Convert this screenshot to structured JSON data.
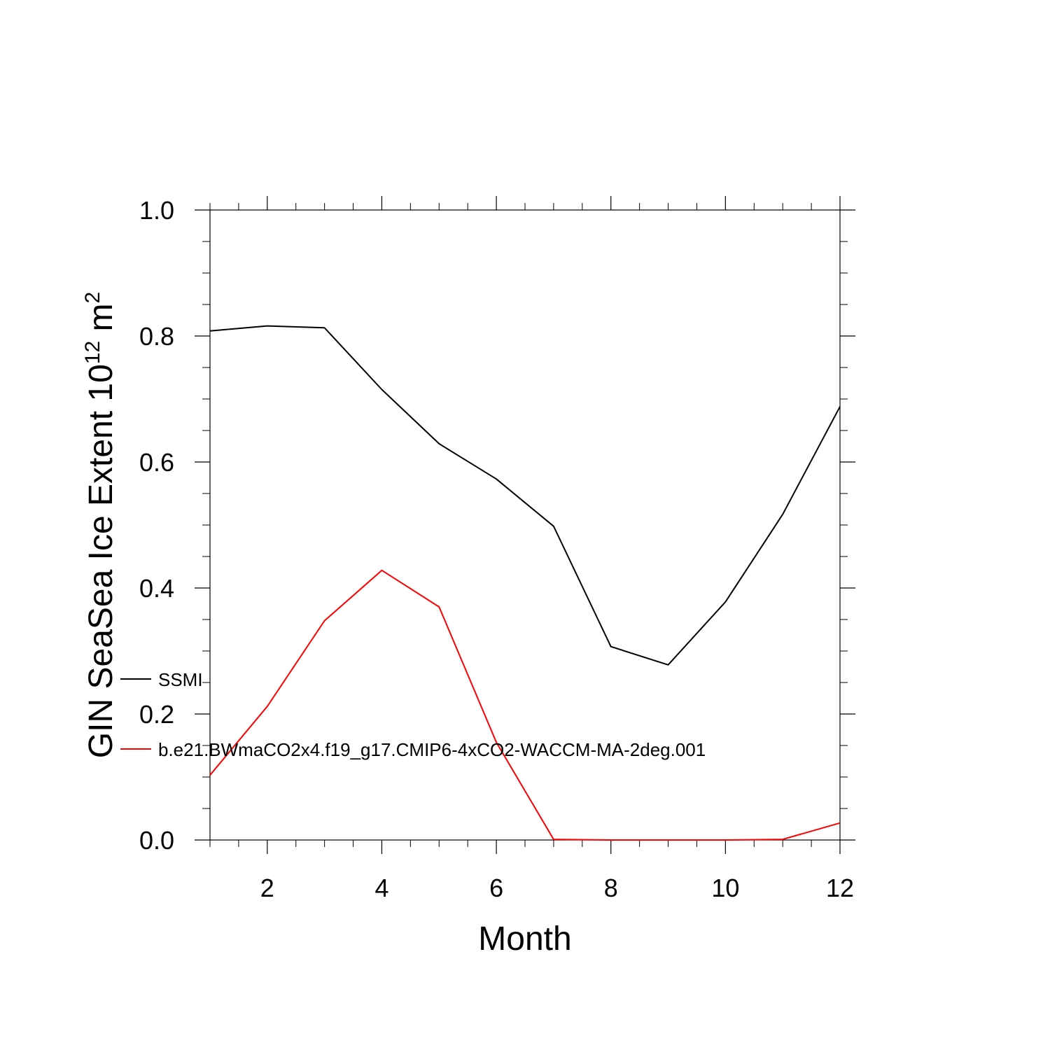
{
  "chart_data": {
    "type": "line",
    "title": "",
    "xlabel": "Month",
    "ylabel": "GIN SeaSea Ice Extent 10",
    "ylabel_superscript": "12",
    "ylabel_unit": " m",
    "ylabel_unit_superscript": "2",
    "xlim": [
      1,
      12
    ],
    "ylim": [
      0,
      1.0
    ],
    "x_ticks": [
      2,
      4,
      6,
      8,
      10,
      12
    ],
    "x_tick_labels": [
      "2",
      "4",
      "6",
      "8",
      "10",
      "12"
    ],
    "y_ticks": [
      0,
      0.2,
      0.4,
      0.6,
      0.8,
      1.0
    ],
    "y_tick_labels": [
      "0.0",
      "0.2",
      "0.4",
      "0.6",
      "0.8",
      "1.0"
    ],
    "grid": false,
    "legend_placement": "left-center",
    "x": [
      1,
      2,
      3,
      4,
      5,
      6,
      7,
      8,
      9,
      10,
      11,
      12
    ],
    "series": [
      {
        "name": "SSMI",
        "color": "#000000",
        "values": [
          0.808,
          0.816,
          0.813,
          0.715,
          0.629,
          0.573,
          0.498,
          0.307,
          0.278,
          0.378,
          0.517,
          0.688
        ]
      },
      {
        "name": "b.e21.BWmaCO2x4.f19_g17.CMIP6-4xCO2-WACCM-MA-2deg.001",
        "color": "#ff0000",
        "values": [
          0.103,
          0.212,
          0.348,
          0.428,
          0.37,
          0.155,
          0.001,
          0.0,
          0.0,
          0.0,
          0.001,
          0.027
        ]
      }
    ]
  }
}
